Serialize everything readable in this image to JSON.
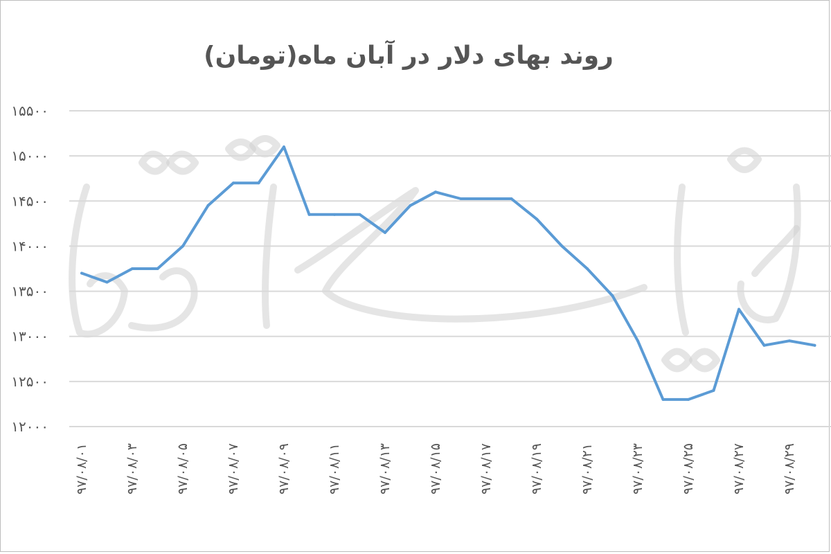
{
  "chart_data": {
    "type": "line",
    "title": "روند بهای دلار در آبان ماه(تومان)",
    "xlabel": "",
    "ylabel": "",
    "ylim": [
      12000,
      15500
    ],
    "yticks": [
      "۱۵۵۰۰",
      "۱۵۰۰۰",
      "۱۴۵۰۰",
      "۱۴۰۰۰",
      "۱۳۵۰۰",
      "۱۳۰۰۰",
      "۱۲۵۰۰",
      "۱۲۰۰۰"
    ],
    "ytick_values": [
      15500,
      15000,
      14500,
      14000,
      13500,
      13000,
      12500,
      12000
    ],
    "xtick_labels": [
      "۹۷/۰۸/۰۱",
      "۹۷/۰۸/۰۳",
      "۹۷/۰۸/۰۵",
      "۹۷/۰۸/۰۷",
      "۹۷/۰۸/۰۹",
      "۹۷/۰۸/۱۱",
      "۹۷/۰۸/۱۳",
      "۹۷/۰۸/۱۵",
      "۹۷/۰۸/۱۷",
      "۹۷/۰۸/۱۹",
      "۹۷/۰۸/۲۱",
      "۹۷/۰۸/۲۳",
      "۹۷/۰۸/۲۵",
      "۹۷/۰۸/۲۷",
      "۹۷/۰۸/۲۹"
    ],
    "grid": true,
    "legend": "none",
    "series": [
      {
        "color": "#5b9bd5",
        "x": [
          "97/08/01",
          "97/08/02",
          "97/08/03",
          "97/08/04",
          "97/08/05",
          "97/08/06",
          "97/08/07",
          "97/08/08",
          "97/08/09",
          "97/08/10",
          "97/08/11",
          "97/08/12",
          "97/08/13",
          "97/08/14",
          "97/08/15",
          "97/08/16",
          "97/08/17",
          "97/08/18",
          "97/08/19",
          "97/08/20",
          "97/08/21",
          "97/08/22",
          "97/08/23",
          "97/08/24",
          "97/08/25",
          "97/08/26",
          "97/08/27",
          "97/08/28",
          "97/08/29",
          "97/08/30"
        ],
        "values": [
          13700,
          13600,
          13750,
          13750,
          14000,
          14450,
          14700,
          14700,
          15100,
          14350,
          14350,
          14350,
          14150,
          14450,
          14600,
          14525,
          14525,
          14525,
          14300,
          14000,
          13750,
          13450,
          12950,
          12300,
          12300,
          12400,
          13300,
          12900,
          12950,
          12900
        ]
      }
    ]
  }
}
